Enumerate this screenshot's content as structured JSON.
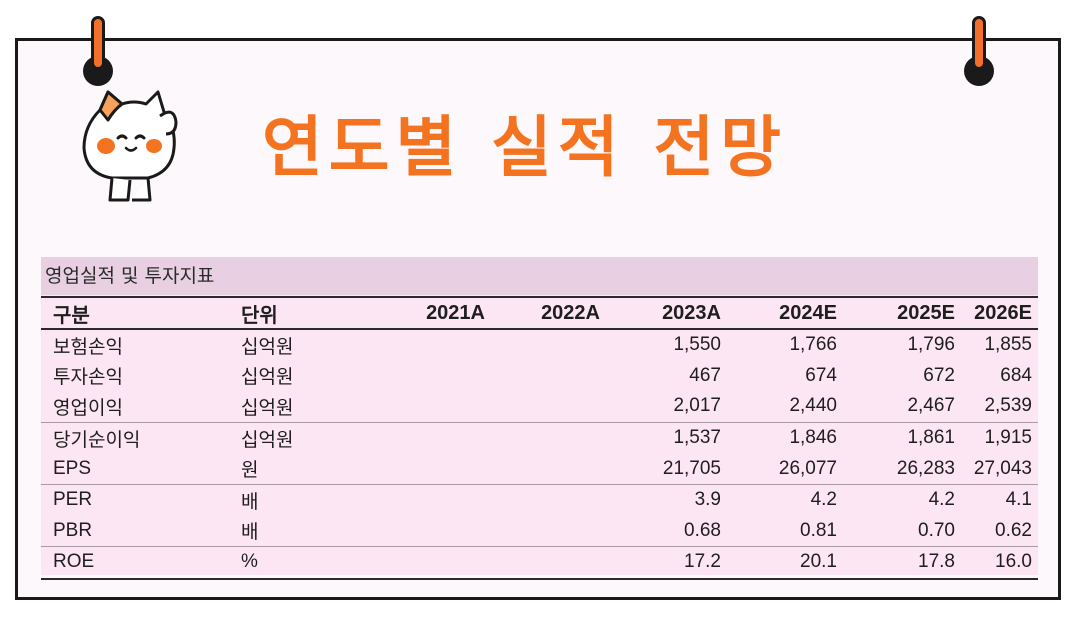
{
  "title": "연도별 실적 전망",
  "accent_color": "#f47320",
  "table": {
    "caption": "영업실적 및 투자지표",
    "headers": [
      "구분",
      "단위",
      "2021A",
      "2022A",
      "2023A",
      "2024E",
      "2025E",
      "2026E"
    ],
    "rows": [
      {
        "label": "보험손익",
        "unit": "십억원",
        "values": [
          "",
          "",
          "1,550",
          "1,766",
          "1,796",
          "1,855"
        ]
      },
      {
        "label": "투자손익",
        "unit": "십억원",
        "values": [
          "",
          "",
          "467",
          "674",
          "672",
          "684"
        ]
      },
      {
        "label": "영업이익",
        "unit": "십억원",
        "values": [
          "",
          "",
          "2,017",
          "2,440",
          "2,467",
          "2,539"
        ]
      },
      {
        "label": "당기순이익",
        "unit": "십억원",
        "values": [
          "",
          "",
          "1,537",
          "1,846",
          "1,861",
          "1,915"
        ]
      },
      {
        "label": "EPS",
        "unit": "원",
        "values": [
          "",
          "",
          "21,705",
          "26,077",
          "26,283",
          "27,043"
        ]
      },
      {
        "label": "PER",
        "unit": "배",
        "values": [
          "",
          "",
          "3.9",
          "4.2",
          "4.2",
          "4.1"
        ]
      },
      {
        "label": "PBR",
        "unit": "배",
        "values": [
          "",
          "",
          "0.68",
          "0.81",
          "0.70",
          "0.62"
        ]
      },
      {
        "label": "ROE",
        "unit": "%",
        "values": [
          "",
          "",
          "17.2",
          "20.1",
          "17.8",
          "16.0"
        ]
      }
    ]
  }
}
